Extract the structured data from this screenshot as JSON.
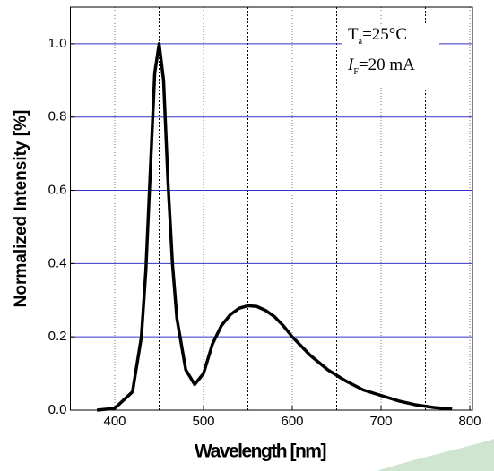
{
  "chart_data": {
    "type": "line",
    "xlabel": "Wavelength [nm]",
    "ylabel": "Normalized Intensity [%]",
    "annotations": [
      {
        "main": "T",
        "sub": "a",
        "rest": "=25°C"
      },
      {
        "main": "I",
        "sub": "F",
        "rest": "=20 mA"
      }
    ],
    "x": [
      380,
      400,
      420,
      430,
      435,
      440,
      445,
      450,
      455,
      460,
      465,
      470,
      480,
      490,
      500,
      510,
      520,
      530,
      540,
      550,
      560,
      570,
      580,
      590,
      600,
      620,
      640,
      660,
      680,
      700,
      720,
      740,
      760,
      780
    ],
    "series": [
      {
        "color": "#000000",
        "values": [
          0,
          0.005,
          0.05,
          0.2,
          0.38,
          0.65,
          0.92,
          1.0,
          0.9,
          0.62,
          0.4,
          0.25,
          0.11,
          0.07,
          0.1,
          0.18,
          0.23,
          0.26,
          0.278,
          0.285,
          0.283,
          0.272,
          0.255,
          0.23,
          0.2,
          0.15,
          0.11,
          0.08,
          0.055,
          0.04,
          0.025,
          0.014,
          0.007,
          0.003
        ]
      }
    ],
    "xlim": [
      350,
      803
    ],
    "ylim": [
      0,
      1.1
    ],
    "xticks": [
      400,
      500,
      600,
      700,
      800
    ],
    "xminor": [
      450,
      550,
      650,
      750
    ],
    "yticks": [
      {
        "value": 0,
        "label": "0.0"
      },
      {
        "value": 0.2,
        "label": "0.2"
      },
      {
        "value": 0.4,
        "label": "0.4"
      },
      {
        "value": 0.6,
        "label": "0.6"
      },
      {
        "value": 0.8,
        "label": "0.8"
      },
      {
        "value": 1.0,
        "label": "1.0"
      }
    ],
    "grid": true,
    "grid_color": "#3333cc"
  }
}
